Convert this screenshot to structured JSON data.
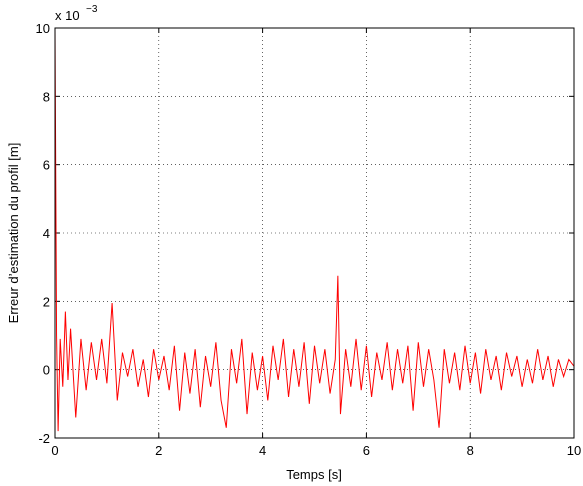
{
  "chart_data": {
    "type": "line",
    "xlabel": "Temps [s]",
    "ylabel": "Erreur d’estimation du profil [m]",
    "y_multiplier": "x 10",
    "y_exponent": "−3",
    "xlim": [
      0,
      10
    ],
    "xticks": [
      0,
      2,
      4,
      6,
      8,
      10
    ],
    "ylim": [
      -2,
      10
    ],
    "yticks": [
      -2,
      0,
      2,
      4,
      6,
      8,
      10
    ],
    "grid": true,
    "series": [
      {
        "color": "#ff0000",
        "x": [
          0,
          0.03,
          0.06,
          0.1,
          0.15,
          0.2,
          0.25,
          0.3,
          0.4,
          0.5,
          0.6,
          0.7,
          0.8,
          0.9,
          1.0,
          1.1,
          1.2,
          1.3,
          1.4,
          1.5,
          1.6,
          1.7,
          1.8,
          1.9,
          2.0,
          2.1,
          2.2,
          2.3,
          2.4,
          2.5,
          2.6,
          2.7,
          2.8,
          2.9,
          3.0,
          3.1,
          3.2,
          3.3,
          3.4,
          3.5,
          3.6,
          3.7,
          3.8,
          3.9,
          4.0,
          4.1,
          4.2,
          4.3,
          4.4,
          4.5,
          4.6,
          4.7,
          4.8,
          4.9,
          5.0,
          5.1,
          5.2,
          5.3,
          5.4,
          5.45,
          5.5,
          5.6,
          5.7,
          5.8,
          5.9,
          6.0,
          6.1,
          6.2,
          6.3,
          6.4,
          6.5,
          6.6,
          6.7,
          6.8,
          6.9,
          7.0,
          7.1,
          7.2,
          7.3,
          7.4,
          7.5,
          7.6,
          7.7,
          7.8,
          7.9,
          8.0,
          8.1,
          8.2,
          8.3,
          8.4,
          8.5,
          8.6,
          8.7,
          8.8,
          8.9,
          9.0,
          9.1,
          9.2,
          9.3,
          9.4,
          9.5,
          9.6,
          9.7,
          9.8,
          9.9,
          10.0
        ],
        "values": [
          10,
          1.0,
          -1.8,
          0.9,
          -0.5,
          1.7,
          -0.3,
          1.2,
          -1.4,
          0.9,
          -0.6,
          0.8,
          -0.3,
          0.9,
          -0.4,
          1.95,
          -0.9,
          0.5,
          -0.2,
          0.6,
          -0.5,
          0.3,
          -0.8,
          0.6,
          -0.3,
          0.4,
          -0.6,
          0.7,
          -1.2,
          0.5,
          -0.7,
          0.6,
          -1.1,
          0.4,
          -0.5,
          0.8,
          -0.9,
          -1.7,
          0.6,
          -0.4,
          0.9,
          -1.3,
          0.5,
          -0.6,
          0.4,
          -0.9,
          0.7,
          -0.3,
          0.9,
          -0.8,
          0.6,
          -0.5,
          0.8,
          -1.0,
          0.7,
          -0.4,
          0.6,
          -0.7,
          0.3,
          2.75,
          -1.3,
          0.6,
          -0.5,
          0.9,
          -0.6,
          0.7,
          -0.8,
          0.5,
          -0.3,
          0.8,
          -0.6,
          0.6,
          -0.4,
          0.7,
          -1.2,
          0.8,
          -0.5,
          0.6,
          -0.3,
          -1.7,
          0.6,
          -0.4,
          0.5,
          -0.6,
          0.7,
          -0.4,
          0.5,
          -0.7,
          0.6,
          -0.3,
          0.4,
          -0.6,
          0.5,
          -0.2,
          0.4,
          -0.5,
          0.3,
          -0.4,
          0.6,
          -0.3,
          0.4,
          -0.5,
          0.3,
          -0.2,
          0.3,
          0.1
        ]
      }
    ]
  }
}
